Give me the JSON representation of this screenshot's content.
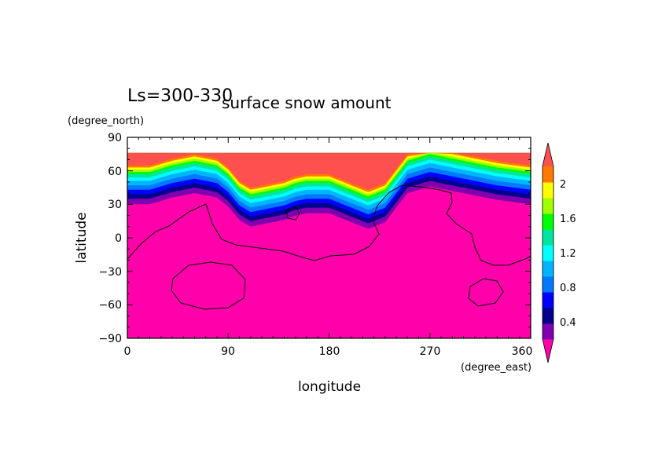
{
  "chart_data": {
    "type": "heatmap",
    "period_label": "Ls=300-330",
    "title": "surface snow amount",
    "xlabel": "longitude",
    "ylabel": "latitude",
    "xunit": "(degree_east)",
    "yunit": "(degree_north)",
    "xlim": [
      0,
      360
    ],
    "ylim": [
      -90,
      90
    ],
    "xticks": [
      "0",
      "90",
      "180",
      "270",
      "360"
    ],
    "yticks": [
      "90",
      "60",
      "30",
      "0",
      "−30",
      "−60",
      "−90"
    ],
    "colorbar": {
      "levels": [
        0.2,
        0.4,
        0.6,
        0.8,
        1.0,
        1.2,
        1.4,
        1.6,
        1.8,
        2.0,
        2.2
      ],
      "tick_labels": [
        "0.4",
        "0.8",
        "1.2",
        "1.6",
        "2"
      ],
      "colors": [
        "#ff00aa",
        "#8000b0",
        "#00008c",
        "#0000ff",
        "#0078ff",
        "#00b4ff",
        "#00ffff",
        "#00e6a0",
        "#00ff00",
        "#a0ff00",
        "#ffff00",
        "#ff7800",
        "#ff5050"
      ],
      "extend": "both"
    },
    "snow_edge_profile": {
      "lon": [
        0,
        20,
        40,
        60,
        80,
        90,
        100,
        110,
        120,
        140,
        150,
        160,
        180,
        200,
        215,
        230,
        250,
        270,
        290,
        310,
        330,
        345,
        360
      ],
      "lat": [
        30,
        30,
        36,
        40,
        36,
        28,
        16,
        10,
        12,
        16,
        20,
        22,
        22,
        14,
        8,
        14,
        40,
        46,
        42,
        38,
        34,
        32,
        30
      ]
    }
  }
}
